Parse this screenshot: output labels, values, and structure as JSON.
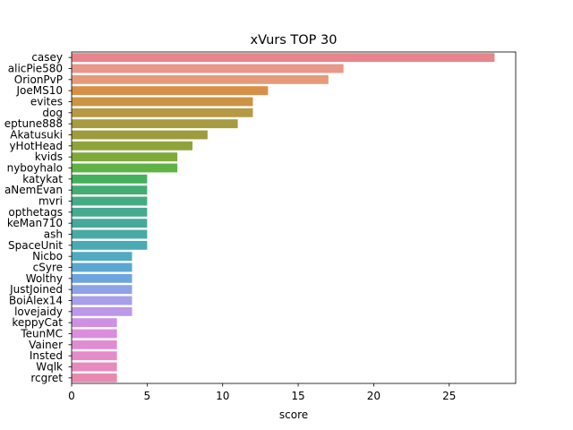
{
  "chart_data": {
    "type": "bar",
    "orientation": "horizontal",
    "title": "xVurs TOP 30",
    "xlabel": "score",
    "ylabel": "",
    "xlim": [
      0,
      29.4
    ],
    "xticks": [
      0,
      5,
      10,
      15,
      20,
      25
    ],
    "grid": false,
    "categories": [
      "casey",
      "alicPie580",
      "OrionPvP",
      "JoeMS10",
      "evites",
      "dog",
      "eptune888",
      "Akatusuki",
      "yHotHead",
      "kvids",
      "nyboyhalo",
      "katykat",
      "aNemEvan",
      "mvri",
      "opthetags",
      "keMan710",
      "ash",
      "SpaceUnit",
      "Nicbo",
      "cSyre",
      "Wolthy",
      "JustJoined",
      "BoiAlex14",
      "lovejaidy",
      "keppyCat",
      "TeunMC",
      "Vainer",
      "Insted",
      "Wqlk",
      "rcgret"
    ],
    "values": [
      28,
      18,
      17,
      13,
      12,
      12,
      11,
      9,
      8,
      7,
      7,
      5,
      5,
      5,
      5,
      5,
      5,
      5,
      4,
      4,
      4,
      4,
      4,
      4,
      3,
      3,
      3,
      3,
      3,
      3
    ],
    "colors": [
      "#e8848b",
      "#e8978b",
      "#e59a7a",
      "#d98f45",
      "#ca9444",
      "#b59a43",
      "#a69b40",
      "#9c9c3d",
      "#8ea33a",
      "#7eaa3b",
      "#5fb245",
      "#45b05a",
      "#45ad72",
      "#45ab82",
      "#46aa8e",
      "#47a999",
      "#48aaa5",
      "#4aaab3",
      "#52a9c2",
      "#5aa7d1",
      "#6ea5df",
      "#8ea2e8",
      "#a89fea",
      "#bc98e8",
      "#cf90e4",
      "#dc8ddc",
      "#e08cd3",
      "#e58bc9",
      "#e78bbe",
      "#e88ab0"
    ]
  }
}
